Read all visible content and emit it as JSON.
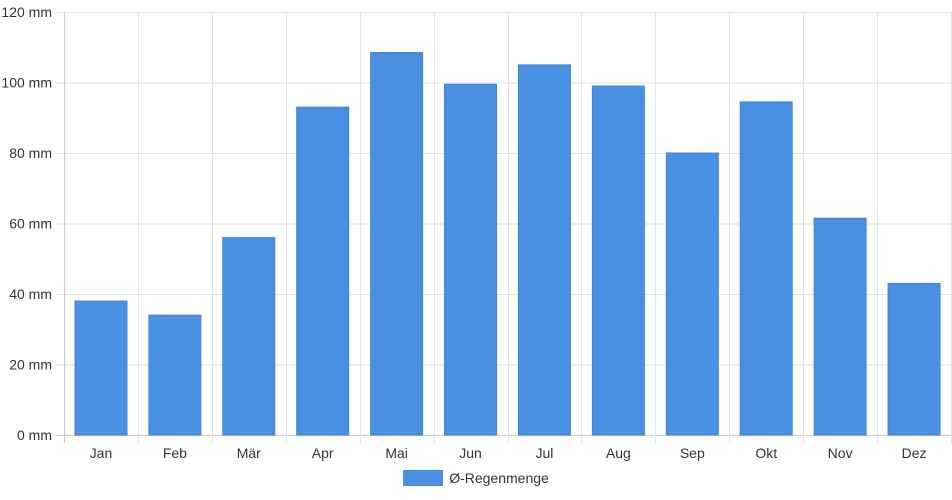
{
  "chart_data": {
    "type": "bar",
    "categories": [
      "Jan",
      "Feb",
      "Mär",
      "Apr",
      "Mai",
      "Jun",
      "Jul",
      "Aug",
      "Sep",
      "Okt",
      "Nov",
      "Dez"
    ],
    "series": [
      {
        "name": "Ø-Regenmenge",
        "values": [
          38,
          34,
          56,
          93,
          108.5,
          99.5,
          105,
          99,
          80,
          94.5,
          61.5,
          43
        ],
        "color": "#4a90e2"
      }
    ],
    "y_ticks": [
      "0 mm",
      "20 mm",
      "40 mm",
      "60 mm",
      "80 mm",
      "100 mm",
      "120 mm"
    ],
    "ylim": [
      0,
      120
    ],
    "unit": "mm",
    "grid": true,
    "legend_position": "bottom-center"
  }
}
